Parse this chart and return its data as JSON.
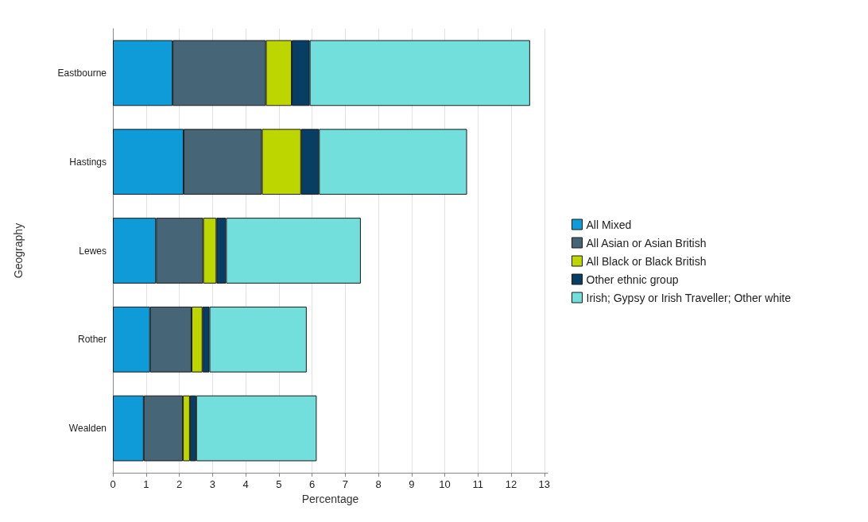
{
  "chart_data": {
    "type": "bar",
    "orientation": "horizontal",
    "stacked": true,
    "xlabel": "Percentage",
    "ylabel": "Geography",
    "categories": [
      "Eastbourne",
      "Hastings",
      "Lewes",
      "Rother",
      "Wealden"
    ],
    "series": [
      {
        "name": "All Mixed",
        "color": "#0e9bd8",
        "values": [
          1.8,
          2.13,
          1.3,
          1.12,
          0.93
        ]
      },
      {
        "name": "All Asian or Asian British",
        "color": "#466577",
        "values": [
          2.81,
          2.36,
          1.42,
          1.25,
          1.18
        ]
      },
      {
        "name": "All Black or Black British",
        "color": "#bed600",
        "values": [
          0.78,
          1.18,
          0.4,
          0.33,
          0.21
        ]
      },
      {
        "name": "Other ethnic group",
        "color": "#083e64",
        "values": [
          0.54,
          0.54,
          0.29,
          0.21,
          0.19
        ]
      },
      {
        "name": "Irish; Gypsy or Irish Traveller; Other white",
        "color": "#73dfdc",
        "values": [
          6.64,
          4.46,
          4.06,
          2.93,
          3.63
        ]
      }
    ],
    "xlim": [
      0,
      13.1
    ],
    "xticks": [
      0,
      1,
      2,
      3,
      4,
      5,
      6,
      7,
      8,
      9,
      10,
      11,
      12,
      13
    ],
    "grid": "x",
    "legend": "right"
  }
}
